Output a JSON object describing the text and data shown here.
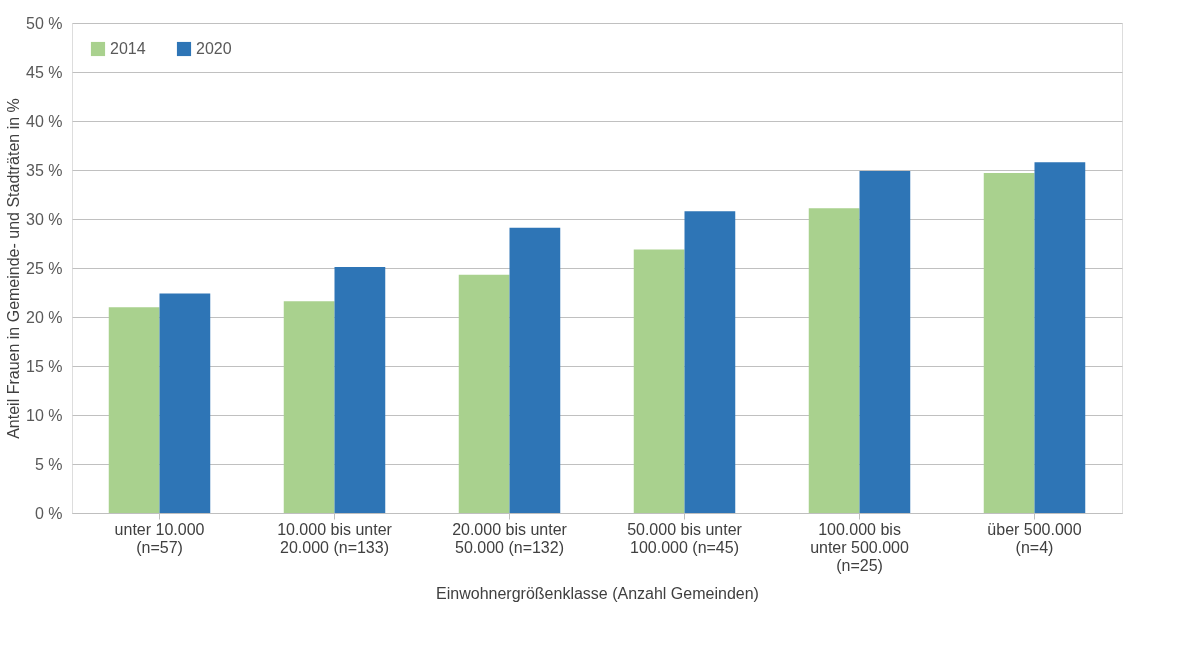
{
  "chart_data": {
    "type": "bar",
    "categories": [
      "unter 10.000 (n=57)",
      "10.000 bis unter 20.000 (n=133)",
      "20.000 bis unter 50.000 (n=132)",
      "50.000 bis unter 100.000 (n=45)",
      "100.000 bis unter 500.000 (n=25)",
      "über 500.000 (n=4)"
    ],
    "series": [
      {
        "name": "2014",
        "color": "#a9d18e",
        "values": [
          21.0,
          21.6,
          24.3,
          26.9,
          31.1,
          34.7
        ]
      },
      {
        "name": "2020",
        "color": "#2e75b6",
        "values": [
          22.4,
          25.1,
          29.1,
          30.8,
          34.9,
          35.8
        ]
      }
    ],
    "xlabel": "Einwohnergrößenklasse (Anzahl Gemeinden)",
    "ylabel": "Anteil Frauen in Gemeinde- und Stadträten in %",
    "ylim": [
      0,
      50
    ],
    "yticks": [
      {
        "value": 0,
        "label": "0 %"
      },
      {
        "value": 5,
        "label": "5 %"
      },
      {
        "value": 10,
        "label": "10 %"
      },
      {
        "value": 15,
        "label": "15 %"
      },
      {
        "value": 20,
        "label": "20 %"
      },
      {
        "value": 25,
        "label": "25 %"
      },
      {
        "value": 30,
        "label": "30 %"
      },
      {
        "value": 35,
        "label": "35 %"
      },
      {
        "value": 40,
        "label": "40 %"
      },
      {
        "value": 45,
        "label": "45 %"
      },
      {
        "value": 50,
        "label": "50 %"
      }
    ],
    "grid": "y",
    "legend": "top left"
  }
}
